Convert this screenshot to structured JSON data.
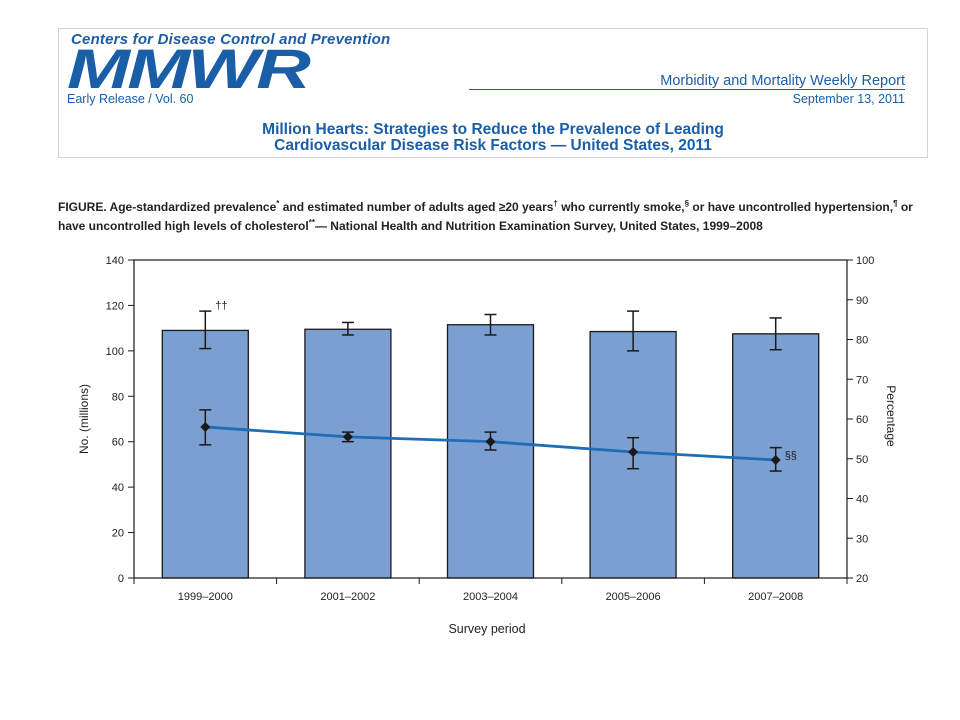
{
  "header": {
    "agency": "Centers for Disease Control and Prevention",
    "logo_text": "MMWR",
    "report_name": "Morbidity and Mortality Weekly Report",
    "issue": "Early Release / Vol. 60",
    "date": "September 13, 2011",
    "title_line1": "Million Hearts: Strategies to Reduce the Prevalence of Leading",
    "title_line2": "Cardiovascular Disease Risk Factors — United States, 2011"
  },
  "caption": {
    "part1": "FIGURE. Age-standardized prevalence",
    "mark1": "*",
    "part2": " and estimated number of adults aged ≥20 years",
    "mark2": "†",
    "part3": " who currently smoke,",
    "mark3": "§",
    "part4": " or have uncontrolled hypertension,",
    "mark4": "¶",
    "part5": " or have uncontrolled high levels of cholesterol",
    "mark5": "**",
    "part6": "— National Health and Nutrition Examination Survey, United States, 1999–2008"
  },
  "chart_data": {
    "type": "bar",
    "xlabel": "Survey period",
    "ylabel": "No. (millions)",
    "ylabel_right": "Percentage",
    "categories": [
      "1999–2000",
      "2001–2002",
      "2003–2004",
      "2005–2006",
      "2007–2008"
    ],
    "ylim": [
      0,
      140
    ],
    "yticks": [
      0,
      20,
      40,
      60,
      80,
      100,
      120,
      140
    ],
    "ylim_right": [
      20,
      100
    ],
    "yticks_right": [
      20,
      30,
      40,
      50,
      60,
      70,
      80,
      90,
      100
    ],
    "series": [
      {
        "type": "bar",
        "axis": "left",
        "color": "#7b9fd1",
        "values": [
          109,
          109.5,
          111.5,
          108.5,
          107.5
        ],
        "error_low": [
          101,
          107,
          107,
          100,
          100.5
        ],
        "error_high": [
          117.5,
          112.5,
          116,
          117.5,
          114.5
        ]
      },
      {
        "type": "line",
        "axis": "right",
        "color": "#1f6db5",
        "values": [
          58,
          55.5,
          54.3,
          51.7,
          49.7
        ],
        "error_low": [
          53.5,
          54.3,
          52.2,
          47.5,
          46.9
        ],
        "error_high": [
          62.3,
          56.7,
          56.7,
          55.3,
          52.8
        ]
      }
    ],
    "annotations": [
      {
        "category": "1999–2000",
        "text": "††",
        "series": 0
      },
      {
        "category": "2007–2008",
        "text": "§§",
        "series": 1
      }
    ],
    "grid": false,
    "legend": "none"
  }
}
